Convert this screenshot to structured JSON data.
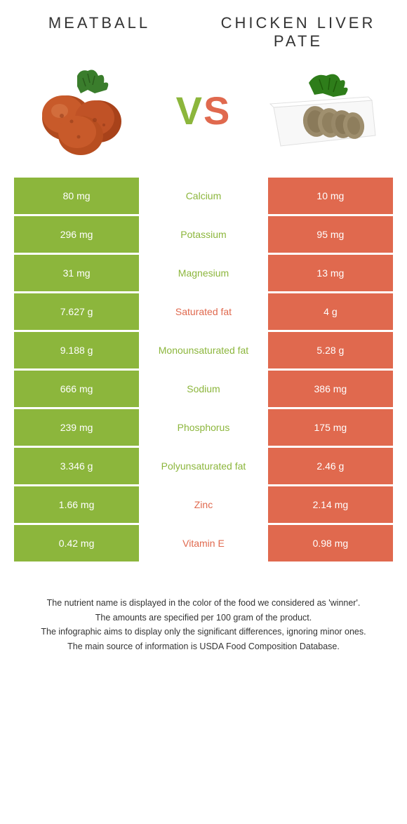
{
  "food1": {
    "name": "Meatball"
  },
  "food2": {
    "name": "Chicken liver pate"
  },
  "vs": {
    "v": "V",
    "s": "S"
  },
  "colors": {
    "green": "#8cb63c",
    "orange": "#e0694e"
  },
  "rows": [
    {
      "left": "80 mg",
      "mid": "Calcium",
      "right": "10 mg",
      "winner": "left"
    },
    {
      "left": "296 mg",
      "mid": "Potassium",
      "right": "95 mg",
      "winner": "left"
    },
    {
      "left": "31 mg",
      "mid": "Magnesium",
      "right": "13 mg",
      "winner": "left"
    },
    {
      "left": "7.627 g",
      "mid": "Saturated fat",
      "right": "4 g",
      "winner": "right"
    },
    {
      "left": "9.188 g",
      "mid": "Monounsaturated fat",
      "right": "5.28 g",
      "winner": "left"
    },
    {
      "left": "666 mg",
      "mid": "Sodium",
      "right": "386 mg",
      "winner": "left"
    },
    {
      "left": "239 mg",
      "mid": "Phosphorus",
      "right": "175 mg",
      "winner": "left"
    },
    {
      "left": "3.346 g",
      "mid": "Polyunsaturated fat",
      "right": "2.46 g",
      "winner": "left"
    },
    {
      "left": "1.66 mg",
      "mid": "Zinc",
      "right": "2.14 mg",
      "winner": "right"
    },
    {
      "left": "0.42 mg",
      "mid": "Vitamin E",
      "right": "0.98 mg",
      "winner": "right"
    }
  ],
  "footer": {
    "l1": "The nutrient name is displayed in the color of the food we considered as 'winner'.",
    "l2": "The amounts are specified per 100 gram of the product.",
    "l3": "The infographic aims to display only the significant differences, ignoring minor ones.",
    "l4": "The main source of information is USDA Food Composition Database."
  }
}
